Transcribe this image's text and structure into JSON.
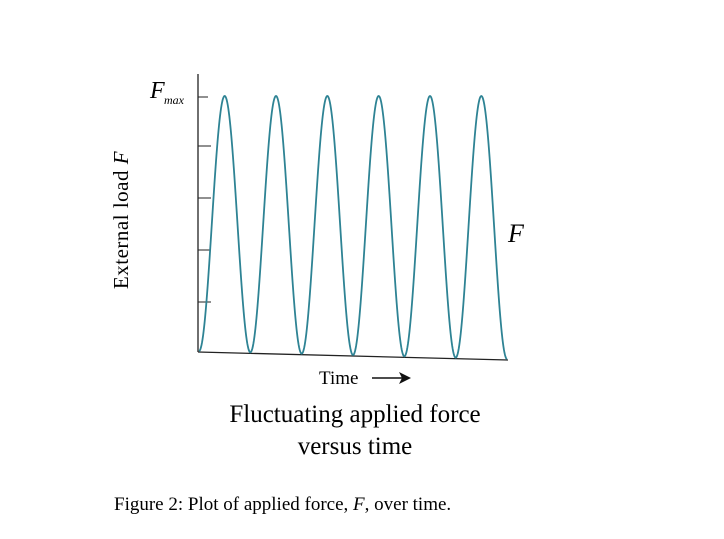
{
  "chart_data": {
    "type": "line",
    "title": "Fluctuating applied force",
    "subtitle": "versus time",
    "xlabel": "Time",
    "ylabel": "External load F",
    "y_tick_label": "F",
    "y_tick_label_sub": "max",
    "series": [
      {
        "name": "F",
        "cycles": 6,
        "min": 0,
        "max": 1
      }
    ],
    "ylim": [
      0,
      1
    ],
    "grid": false,
    "colors": {
      "curve": "#2e8394",
      "axis": "#222222"
    }
  },
  "caption": "Figure 2: Plot of applied force, F, over time."
}
